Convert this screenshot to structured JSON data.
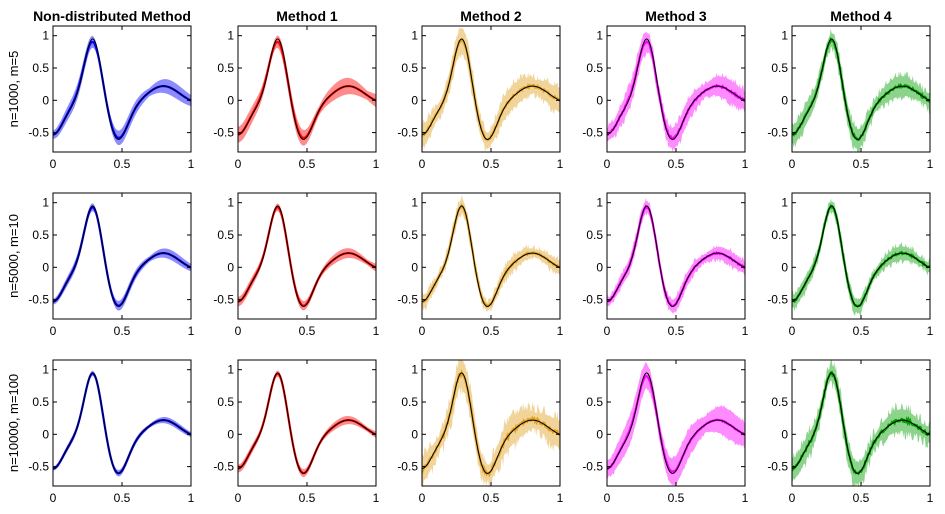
{
  "chart_data": {
    "type": "line",
    "description_rows": [
      "n=1000, m=5",
      "n=5000, m=10",
      "n=10000, m=100"
    ],
    "methods": [
      {
        "title": "Non-distributed Method",
        "color": "#0000ff"
      },
      {
        "title": "Method 1",
        "color": "#ff0000"
      },
      {
        "title": "Method 2",
        "color": "#e0a020"
      },
      {
        "title": "Method 3",
        "color": "#ff00ff"
      },
      {
        "title": "Method 4",
        "color": "#00a000"
      }
    ],
    "true_line_color": "#000000",
    "xlim": [
      0,
      1
    ],
    "ylim": [
      -0.8,
      1.15
    ],
    "x_ticks": [
      0,
      0.5,
      1
    ],
    "x_tick_labels": [
      "0",
      "0.5",
      "1"
    ],
    "y_ticks": [
      -0.5,
      0,
      0.5,
      1
    ],
    "y_tick_labels": [
      "-0.5",
      "0",
      "0.5",
      "1"
    ],
    "band_halfwidth": [
      [
        0.09,
        0.1,
        0.14,
        0.13,
        0.12
      ],
      [
        0.06,
        0.06,
        0.08,
        0.08,
        0.08
      ],
      [
        0.04,
        0.05,
        0.16,
        0.17,
        0.13
      ]
    ],
    "noise_level": [
      [
        0.0,
        0.0,
        0.05,
        0.04,
        0.05
      ],
      [
        0.0,
        0.0,
        0.04,
        0.03,
        0.04
      ],
      [
        0.0,
        0.0,
        0.08,
        0.02,
        0.07
      ]
    ],
    "peak_shrink": [
      [
        0.22,
        0.22,
        0.05,
        0.18,
        0.08
      ],
      [
        0.1,
        0.1,
        0.04,
        0.08,
        0.04
      ],
      [
        0.03,
        0.05,
        0.03,
        0.25,
        0.03
      ]
    ]
  }
}
